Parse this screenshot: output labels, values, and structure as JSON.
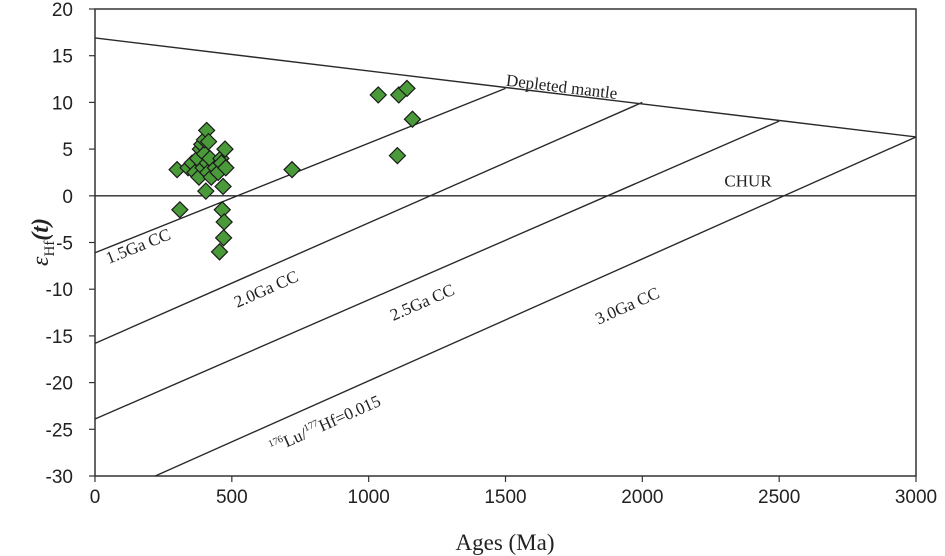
{
  "chart_data": {
    "type": "scatter",
    "xlabel": "Ages (Ma)",
    "ylabel_symbol": "ε",
    "ylabel_sub": "Hf",
    "ylabel_arg": "(t)",
    "xlim": [
      0,
      3000
    ],
    "ylim": [
      -30,
      20
    ],
    "xticks": [
      0,
      500,
      1000,
      1500,
      2000,
      2500,
      3000
    ],
    "yticks": [
      -30,
      -25,
      -20,
      -15,
      -10,
      -5,
      0,
      5,
      10,
      15,
      20
    ],
    "point_color": "#4a9a3a",
    "reference_lines": [
      {
        "name": "depleted-mantle",
        "label": "Depleted mantle",
        "x": [
          0,
          3000
        ],
        "y": [
          16.9,
          6.3
        ],
        "label_at": [
          1500,
          11.8
        ],
        "angle_data": true
      },
      {
        "name": "chur",
        "label": "CHUR",
        "x": [
          0,
          3000
        ],
        "y": [
          0,
          0
        ],
        "label_at": [
          2300,
          1.0
        ],
        "angle_data": false
      },
      {
        "name": "cc-1-5",
        "label": "1.5Ga CC",
        "x": [
          0,
          1500
        ],
        "y": [
          -6.1,
          11.5
        ],
        "label_at": [
          50,
          -7.3
        ],
        "angle_data": true
      },
      {
        "name": "cc-2-0",
        "label": "2.0Ga CC",
        "x": [
          0,
          2000
        ],
        "y": [
          -15.8,
          10.0
        ],
        "label_at": [
          520,
          -12.0
        ],
        "angle_data": true
      },
      {
        "name": "cc-2-5",
        "label": "2.5Ga CC",
        "x": [
          0,
          2500
        ],
        "y": [
          -23.9,
          8.0
        ],
        "label_at": [
          1090,
          -13.4
        ],
        "angle_data": true
      },
      {
        "name": "cc-3-0",
        "label": "3.0Ga CC",
        "x": [
          220,
          3000
        ],
        "y": [
          -30,
          6.3
        ],
        "label_at": [
          1840,
          -13.8
        ],
        "angle_data": true
      }
    ],
    "annotation": {
      "sup1": "176",
      "text1": "Lu/",
      "sup2": "177",
      "text2": "Hf=0.015",
      "at": [
        650,
        -27.6
      ]
    },
    "points": [
      {
        "x": 300,
        "y": 2.8
      },
      {
        "x": 310,
        "y": -1.5
      },
      {
        "x": 340,
        "y": 3.0
      },
      {
        "x": 355,
        "y": 3.5
      },
      {
        "x": 365,
        "y": 2.5
      },
      {
        "x": 375,
        "y": 4.0
      },
      {
        "x": 380,
        "y": 2.0
      },
      {
        "x": 385,
        "y": 5.0
      },
      {
        "x": 390,
        "y": 5.5
      },
      {
        "x": 395,
        "y": 3.0
      },
      {
        "x": 400,
        "y": 4.5
      },
      {
        "x": 400,
        "y": 6.0
      },
      {
        "x": 405,
        "y": 0.5
      },
      {
        "x": 408,
        "y": 7.0
      },
      {
        "x": 410,
        "y": 3.5
      },
      {
        "x": 412,
        "y": 2.5
      },
      {
        "x": 415,
        "y": 5.8
      },
      {
        "x": 420,
        "y": 4.0
      },
      {
        "x": 425,
        "y": 2.0
      },
      {
        "x": 440,
        "y": 3.0
      },
      {
        "x": 450,
        "y": 2.5
      },
      {
        "x": 455,
        "y": -6.0
      },
      {
        "x": 460,
        "y": 4.0
      },
      {
        "x": 462,
        "y": 3.5
      },
      {
        "x": 465,
        "y": -1.5
      },
      {
        "x": 468,
        "y": 1.0
      },
      {
        "x": 470,
        "y": -4.5
      },
      {
        "x": 472,
        "y": -2.8
      },
      {
        "x": 475,
        "y": 5.0
      },
      {
        "x": 478,
        "y": 3.0
      },
      {
        "x": 720,
        "y": 2.8
      },
      {
        "x": 1035,
        "y": 10.8
      },
      {
        "x": 1105,
        "y": 4.3
      },
      {
        "x": 1110,
        "y": 10.8
      },
      {
        "x": 1140,
        "y": 11.5
      },
      {
        "x": 1160,
        "y": 8.2
      }
    ]
  }
}
